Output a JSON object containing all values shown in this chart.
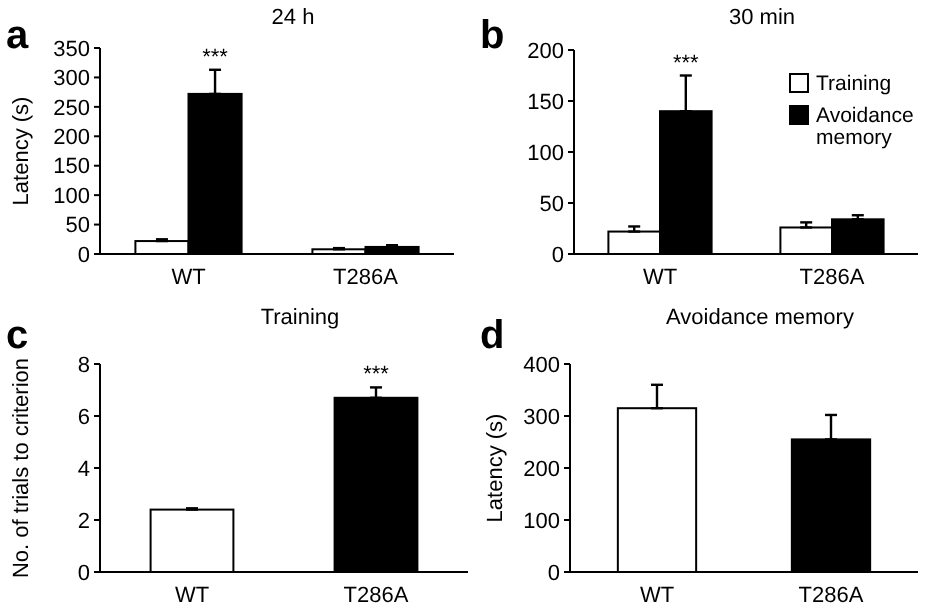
{
  "chart_data": [
    {
      "type": "bar",
      "title": "24 h",
      "ylabel": "Latency (s)",
      "categories": [
        "WT",
        "T286A"
      ],
      "ylim": [
        0,
        350
      ],
      "yticks": [
        0,
        50,
        100,
        150,
        200,
        250,
        300,
        350
      ],
      "grid": false,
      "legend": false,
      "series": [
        {
          "color": "#ffffff",
          "values": [
            22,
            8
          ],
          "errors": [
            [
              22,
              25
            ],
            [
              8,
              10
            ]
          ]
        },
        {
          "color": "#000000",
          "values": [
            272,
            12
          ],
          "errors": [
            [
              272,
              313
            ],
            [
              12,
              15
            ]
          ]
        }
      ],
      "annotations": [
        "a",
        {
          "text": "***",
          "x": "WT",
          "y": 272
        }
      ]
    },
    {
      "type": "bar",
      "title": "30 min",
      "categories": [
        "WT",
        "T286A"
      ],
      "ylim": [
        0,
        200
      ],
      "yticks": [
        0,
        50,
        100,
        150,
        200
      ],
      "grid": false,
      "legend": "top right",
      "series": [
        {
          "name": "Training",
          "color": "#ffffff",
          "values": [
            22,
            26
          ],
          "errors": [
            [
              22,
              27
            ],
            [
              26,
              31
            ]
          ]
        },
        {
          "name": "Avoidance memory",
          "color": "#000000",
          "values": [
            140,
            34
          ],
          "errors": [
            [
              140,
              175
            ],
            [
              34,
              38
            ]
          ]
        }
      ],
      "annotations": [
        "b",
        {
          "text": "***",
          "x": "WT",
          "y": 140
        }
      ]
    },
    {
      "type": "bar",
      "title": "Training",
      "ylabel": "No. of trials to criterion",
      "categories": [
        "WT",
        "T286A"
      ],
      "ylim": [
        0,
        8
      ],
      "yticks": [
        0,
        2,
        4,
        6,
        8
      ],
      "grid": false,
      "legend": false,
      "series": [
        {
          "colors": [
            "#ffffff",
            "#000000"
          ],
          "values": [
            2.4,
            6.7
          ],
          "errors": [
            [
              2.4,
              2.45
            ],
            [
              6.7,
              7.1
            ]
          ]
        }
      ],
      "annotations": [
        "c",
        {
          "text": "***",
          "x": "T286A",
          "y": 6.7
        }
      ]
    },
    {
      "type": "bar",
      "title": "Avoidance memory",
      "ylabel": "Latency (s)",
      "categories": [
        "WT",
        "T286A"
      ],
      "ylim": [
        0,
        400
      ],
      "yticks": [
        0,
        100,
        200,
        300,
        400
      ],
      "grid": false,
      "legend": false,
      "series": [
        {
          "colors": [
            "#ffffff",
            "#000000"
          ],
          "values": [
            315,
            255
          ],
          "errors": [
            [
              315,
              360
            ],
            [
              255,
              302
            ]
          ]
        }
      ],
      "annotations": [
        "d"
      ]
    }
  ]
}
